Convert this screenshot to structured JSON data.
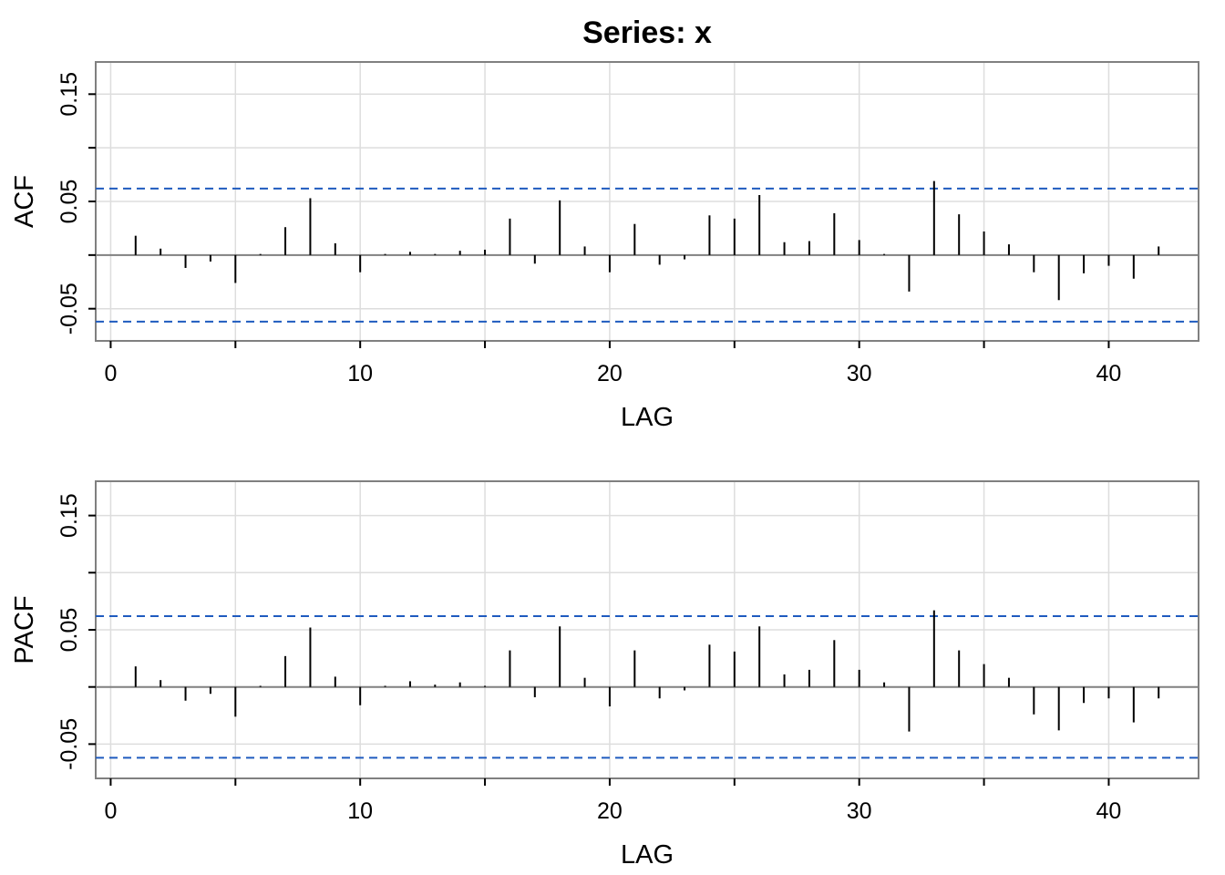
{
  "title": "Series:  x",
  "colors": {
    "grid": "#dddddd",
    "frame": "#808080",
    "zero_line": "#808080",
    "bars": "#000000",
    "confidence_band": "#1f5bbf"
  },
  "chart_data": [
    {
      "type": "bar",
      "ylabel": "ACF",
      "xlabel": "LAG",
      "xlim": [
        -0.6,
        43.6
      ],
      "ylim": [
        -0.08,
        0.18
      ],
      "x_ticks": [
        0,
        10,
        20,
        30,
        40
      ],
      "y_ticks": [
        "-0.05",
        "0.05",
        "0.15"
      ],
      "grid": true,
      "confidence_band": 0.062,
      "lags": [
        1,
        2,
        3,
        4,
        5,
        6,
        7,
        8,
        9,
        10,
        11,
        12,
        13,
        14,
        15,
        16,
        17,
        18,
        19,
        20,
        21,
        22,
        23,
        24,
        25,
        26,
        27,
        28,
        29,
        30,
        31,
        32,
        33,
        34,
        35,
        36,
        37,
        38,
        39,
        40,
        41,
        42
      ],
      "values": [
        0.018,
        0.006,
        -0.012,
        -0.006,
        -0.026,
        0.001,
        0.026,
        0.053,
        0.011,
        -0.016,
        0.001,
        0.003,
        0.001,
        0.004,
        0.005,
        0.034,
        -0.008,
        0.051,
        0.008,
        -0.016,
        0.029,
        -0.009,
        -0.004,
        0.037,
        0.034,
        0.056,
        0.012,
        0.013,
        0.039,
        0.014,
        0.001,
        -0.034,
        0.069,
        0.038,
        0.022,
        0.01,
        -0.016,
        -0.042,
        -0.017,
        -0.01,
        -0.022,
        0.008
      ]
    },
    {
      "type": "bar",
      "ylabel": "PACF",
      "xlabel": "LAG",
      "xlim": [
        -0.6,
        43.6
      ],
      "ylim": [
        -0.08,
        0.18
      ],
      "x_ticks": [
        0,
        10,
        20,
        30,
        40
      ],
      "y_ticks": [
        "-0.05",
        "0.05",
        "0.15"
      ],
      "grid": true,
      "confidence_band": 0.062,
      "lags": [
        1,
        2,
        3,
        4,
        5,
        6,
        7,
        8,
        9,
        10,
        11,
        12,
        13,
        14,
        15,
        16,
        17,
        18,
        19,
        20,
        21,
        22,
        23,
        24,
        25,
        26,
        27,
        28,
        29,
        30,
        31,
        32,
        33,
        34,
        35,
        36,
        37,
        38,
        39,
        40,
        41,
        42
      ],
      "values": [
        0.018,
        0.006,
        -0.012,
        -0.006,
        -0.026,
        0.001,
        0.027,
        0.052,
        0.009,
        -0.016,
        0.001,
        0.005,
        0.002,
        0.004,
        0.001,
        0.032,
        -0.009,
        0.053,
        0.008,
        -0.017,
        0.032,
        -0.01,
        -0.003,
        0.037,
        0.031,
        0.053,
        0.011,
        0.015,
        0.041,
        0.015,
        0.004,
        -0.039,
        0.067,
        0.032,
        0.02,
        0.008,
        -0.024,
        -0.038,
        -0.014,
        -0.01,
        -0.031,
        -0.01
      ]
    }
  ]
}
